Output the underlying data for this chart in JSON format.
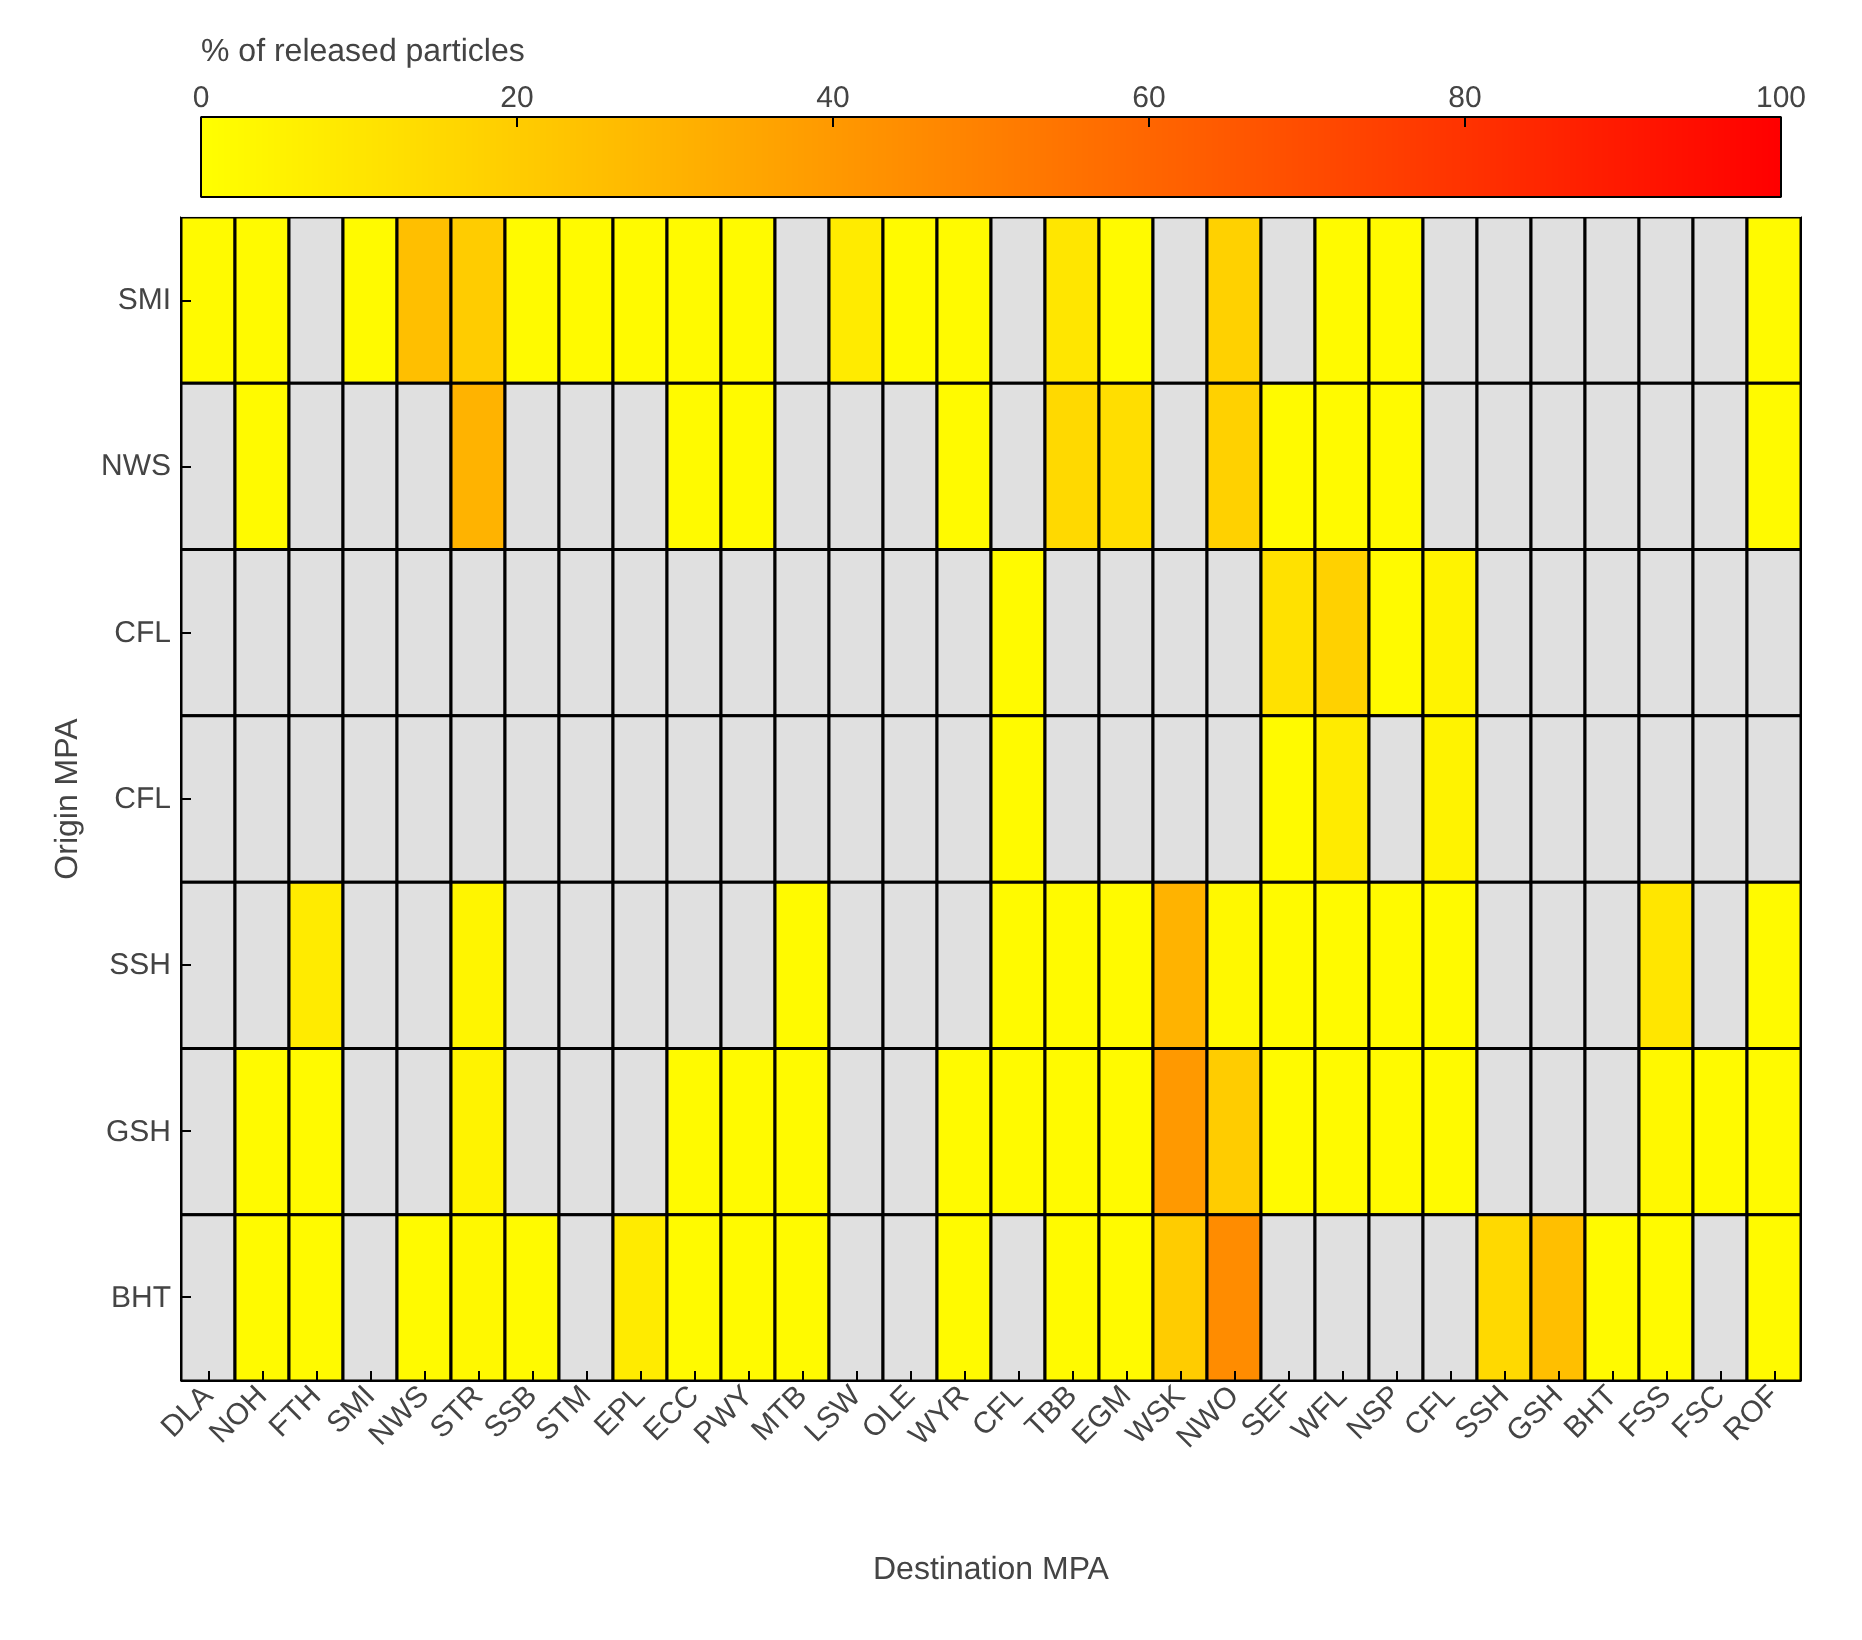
{
  "chart_data": {
    "type": "heatmap",
    "xlabel": "Destination MPA",
    "ylabel": "Origin MPA",
    "clabel": "% of released particles",
    "categories": [
      "DLA",
      "NOH",
      "FTH",
      "SMI",
      "NWS",
      "STR",
      "SSB",
      "STM",
      "EPL",
      "ECC",
      "PWY",
      "MTB",
      "LSW",
      "OLE",
      "WYR",
      "CFL",
      "TBB",
      "EGM",
      "WSK",
      "NWO",
      "SEF",
      "WFL",
      "NSP",
      "CFL",
      "SSH",
      "GSH",
      "BHT",
      "FSS",
      "FSC",
      "ROF"
    ],
    "y_categories": [
      "SMI",
      "NWS",
      "CFL",
      "CFL",
      "SSH",
      "GSH",
      "BHT"
    ],
    "cells": [
      [
        2,
        2,
        null,
        2,
        25,
        20,
        2,
        2,
        2,
        2,
        2,
        null,
        8,
        2,
        2,
        null,
        10,
        2,
        null,
        18,
        null,
        2,
        2,
        null,
        null,
        null,
        null,
        null,
        null,
        2
      ],
      [
        null,
        2,
        null,
        null,
        null,
        30,
        null,
        null,
        null,
        2,
        2,
        null,
        null,
        null,
        2,
        null,
        15,
        13,
        null,
        18,
        2,
        2,
        2,
        null,
        null,
        null,
        null,
        null,
        null,
        2
      ],
      [
        null,
        null,
        null,
        null,
        null,
        null,
        null,
        null,
        null,
        null,
        null,
        null,
        null,
        null,
        null,
        2,
        null,
        null,
        null,
        null,
        12,
        18,
        2,
        5,
        null,
        null,
        null,
        null,
        null,
        null
      ],
      [
        null,
        null,
        null,
        null,
        null,
        null,
        null,
        null,
        null,
        null,
        null,
        null,
        null,
        null,
        null,
        2,
        null,
        null,
        null,
        null,
        2,
        8,
        null,
        5,
        null,
        null,
        null,
        null,
        null,
        null
      ],
      [
        null,
        null,
        8,
        null,
        null,
        4,
        null,
        null,
        null,
        null,
        null,
        2,
        null,
        null,
        null,
        2,
        2,
        2,
        30,
        3,
        2,
        2,
        2,
        2,
        null,
        null,
        null,
        10,
        null,
        2
      ],
      [
        null,
        2,
        2,
        null,
        null,
        5,
        null,
        null,
        null,
        2,
        2,
        2,
        null,
        null,
        2,
        2,
        2,
        2,
        40,
        20,
        2,
        2,
        2,
        2,
        null,
        null,
        null,
        3,
        2,
        2
      ],
      [
        null,
        2,
        2,
        null,
        2,
        3,
        2,
        null,
        8,
        2,
        2,
        2,
        null,
        null,
        2,
        null,
        2,
        2,
        20,
        45,
        null,
        null,
        null,
        null,
        15,
        25,
        2,
        2,
        null,
        2
      ]
    ],
    "clim": [
      0,
      100
    ],
    "cticks": [
      0,
      20,
      40,
      60,
      80,
      100
    ]
  }
}
